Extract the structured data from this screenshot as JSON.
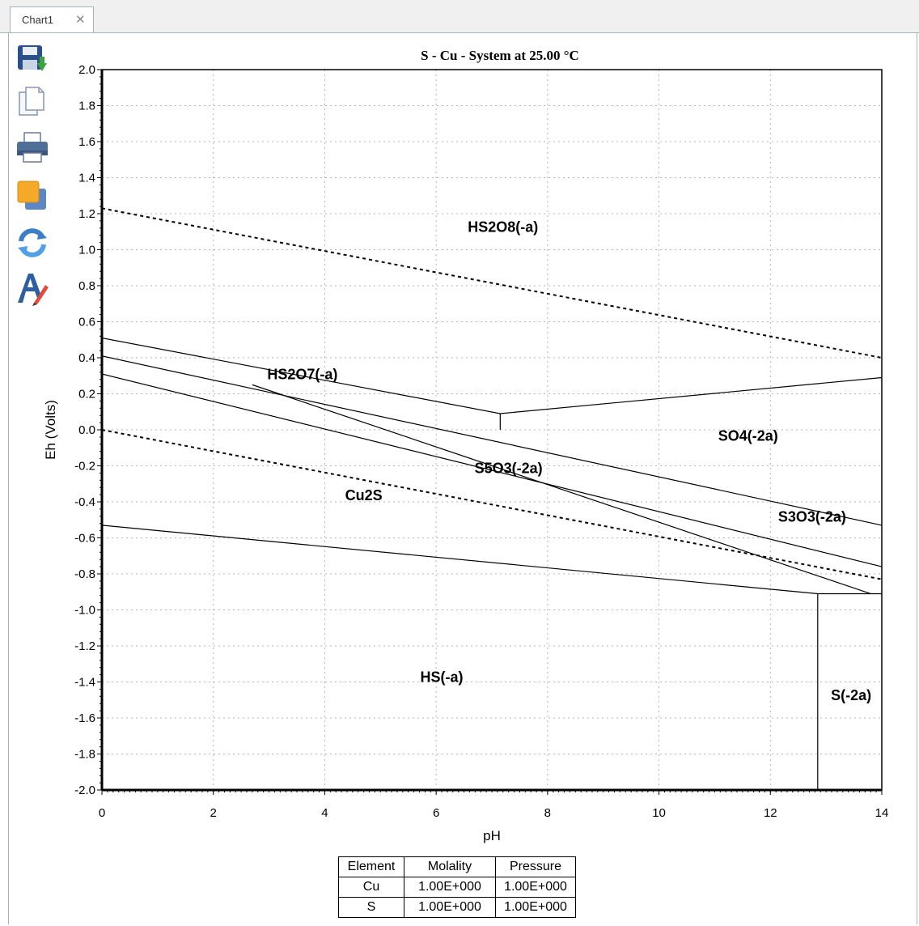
{
  "tab": {
    "label": "Chart1",
    "close_icon": "close-icon"
  },
  "toolbar": [
    {
      "icon": "save-icon"
    },
    {
      "icon": "copy-icon"
    },
    {
      "icon": "print-icon"
    },
    {
      "icon": "color-icon"
    },
    {
      "icon": "refresh-icon"
    },
    {
      "icon": "font-edit-icon"
    }
  ],
  "chart_data": {
    "type": "line",
    "title": "S - Cu - System at 25.00 °C",
    "xlabel": "pH",
    "ylabel": "Eh (Volts)",
    "xlim": [
      0,
      14
    ],
    "ylim": [
      -2.0,
      2.0
    ],
    "xticks": [
      "0",
      "2",
      "4",
      "6",
      "8",
      "10",
      "12",
      "14"
    ],
    "yticks": [
      "2.0",
      "1.8",
      "1.6",
      "1.4",
      "1.2",
      "1.0",
      "0.8",
      "0.6",
      "0.4",
      "0.2",
      "0.0",
      "-0.2",
      "-0.4",
      "-0.6",
      "-0.8",
      "-1.0",
      "-1.2",
      "-1.4",
      "-1.6",
      "-1.8",
      "-2.0"
    ],
    "grid": true,
    "series": [
      {
        "style": "dashed",
        "x": [
          0,
          14
        ],
        "y": [
          1.23,
          0.4
        ]
      },
      {
        "style": "dashed",
        "x": [
          0,
          14
        ],
        "y": [
          0.0,
          -0.83
        ]
      },
      {
        "style": "solid",
        "x": [
          0,
          7.15
        ],
        "y": [
          0.51,
          0.09
        ]
      },
      {
        "style": "solid",
        "x": [
          7.15,
          14
        ],
        "y": [
          0.09,
          0.29
        ]
      },
      {
        "style": "solid",
        "x": [
          7.15,
          7.15
        ],
        "y": [
          0.09,
          0.0
        ]
      },
      {
        "style": "solid",
        "x": [
          0,
          14
        ],
        "y": [
          0.41,
          -0.53
        ]
      },
      {
        "style": "solid",
        "x": [
          0,
          14
        ],
        "y": [
          0.31,
          -0.76
        ]
      },
      {
        "style": "solid",
        "x": [
          0,
          12.85,
          14
        ],
        "y": [
          -0.53,
          -0.91,
          -0.91
        ]
      },
      {
        "style": "solid",
        "x": [
          2.7,
          13.8
        ],
        "y": [
          0.25,
          -0.91
        ]
      },
      {
        "style": "solid",
        "x": [
          12.85,
          12.85
        ],
        "y": [
          -0.91,
          -2.0
        ]
      }
    ],
    "region_labels": [
      {
        "text": "HS2O8(-a)",
        "x": 7.2,
        "y": 1.1
      },
      {
        "text": "HS2O7(-a)",
        "x": 3.6,
        "y": 0.28
      },
      {
        "text": "SO4(-2a)",
        "x": 11.6,
        "y": -0.06
      },
      {
        "text": "S5O3(-2a)",
        "x": 7.3,
        "y": -0.24
      },
      {
        "text": "Cu2S",
        "x": 4.7,
        "y": -0.39
      },
      {
        "text": "S3O3(-2a)",
        "x": 12.75,
        "y": -0.51
      },
      {
        "text": "HS(-a)",
        "x": 6.1,
        "y": -1.4
      },
      {
        "text": "S(-2a)",
        "x": 13.45,
        "y": -1.5
      }
    ]
  },
  "legend_table": {
    "headers": [
      "Element",
      "Molality",
      "Pressure"
    ],
    "rows": [
      [
        "Cu",
        "1.00E+000",
        "1.00E+000"
      ],
      [
        "S",
        "1.00E+000",
        "1.00E+000"
      ]
    ]
  }
}
